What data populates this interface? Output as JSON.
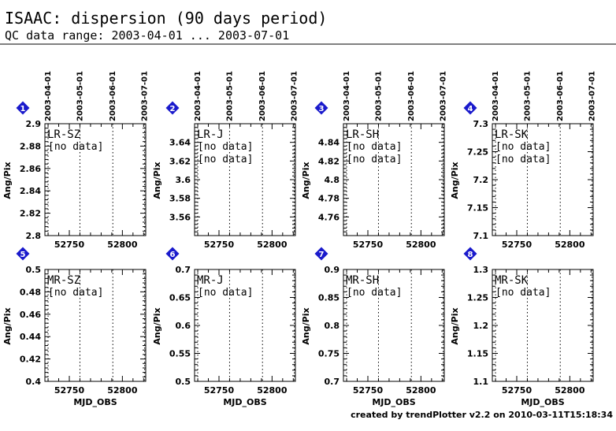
{
  "header": {
    "title": "ISAAC: dispersion (90 days period)",
    "subtitle": "QC data range: 2003-04-01 ... 2003-07-01"
  },
  "footer": {
    "credit": "created by trendPlotter v2.2 on 2010-03-11T15:18:34"
  },
  "colors": {
    "badge": "#1a1acc",
    "nodata_red": "#ff0000",
    "nodata_blue": "#0000ff",
    "nodata_black": "#000000"
  },
  "chart_data": {
    "type": "scatter",
    "xlabel": "MJD_OBS",
    "ylabel": "Ang/Pix",
    "xlim": [
      52727,
      52822
    ],
    "xticks": [
      52750,
      52800
    ],
    "date_markers": [
      {
        "label": "2003-04-01",
        "mjd": 52730
      },
      {
        "label": "2003-05-01",
        "mjd": 52760
      },
      {
        "label": "2003-06-01",
        "mjd": 52791
      },
      {
        "label": "2003-07-01",
        "mjd": 52821
      }
    ],
    "panels": [
      {
        "badge": "1",
        "name": "LR-SZ",
        "ylim": [
          2.8,
          2.9
        ],
        "yticks": [
          "2.8",
          "2.82",
          "2.84",
          "2.86",
          "2.88",
          "2.9"
        ],
        "nodata": [
          {
            "text": "[no data]",
            "color": "red"
          }
        ],
        "points": []
      },
      {
        "badge": "2",
        "name": "LR-J",
        "ylim": [
          3.54,
          3.66
        ],
        "yticks": [
          "3.56",
          "3.58",
          "3.6",
          "3.62",
          "3.64"
        ],
        "nodata": [
          {
            "text": "[no data]",
            "color": "red"
          },
          {
            "text": "[no data]",
            "color": "blue"
          }
        ],
        "points": []
      },
      {
        "badge": "3",
        "name": "LR-SH",
        "ylim": [
          4.74,
          4.86
        ],
        "yticks": [
          "4.76",
          "4.78",
          "4.8",
          "4.82",
          "4.84"
        ],
        "nodata": [
          {
            "text": "[no data]",
            "color": "red"
          },
          {
            "text": "[no data]",
            "color": "blue"
          }
        ],
        "points": []
      },
      {
        "badge": "4",
        "name": "LR-SK",
        "ylim": [
          7.1,
          7.3
        ],
        "yticks": [
          "7.1",
          "7.15",
          "7.2",
          "7.25",
          "7.3"
        ],
        "nodata": [
          {
            "text": "[no data]",
            "color": "red"
          },
          {
            "text": "[no data]",
            "color": "blue"
          }
        ],
        "points": []
      },
      {
        "badge": "5",
        "name": "MR-SZ",
        "ylim": [
          0.4,
          0.5
        ],
        "yticks": [
          "0.4",
          "0.42",
          "0.44",
          "0.46",
          "0.48",
          "0.5"
        ],
        "nodata": [
          {
            "text": "[no data]",
            "color": "black"
          }
        ],
        "points": []
      },
      {
        "badge": "6",
        "name": "MR-J",
        "ylim": [
          0.5,
          0.7
        ],
        "yticks": [
          "0.5",
          "0.55",
          "0.6",
          "0.65",
          "0.7"
        ],
        "nodata": [
          {
            "text": "[no data]",
            "color": "black"
          }
        ],
        "points": []
      },
      {
        "badge": "7",
        "name": "MR-SH",
        "ylim": [
          0.7,
          0.9
        ],
        "yticks": [
          "0.7",
          "0.75",
          "0.8",
          "0.85",
          "0.9"
        ],
        "nodata": [
          {
            "text": "[no data]",
            "color": "black"
          }
        ],
        "points": []
      },
      {
        "badge": "8",
        "name": "MR-SK",
        "ylim": [
          1.1,
          1.3
        ],
        "yticks": [
          "1.1",
          "1.15",
          "1.2",
          "1.25",
          "1.3"
        ],
        "nodata": [
          {
            "text": "[no data]",
            "color": "black"
          }
        ],
        "points": []
      }
    ]
  }
}
